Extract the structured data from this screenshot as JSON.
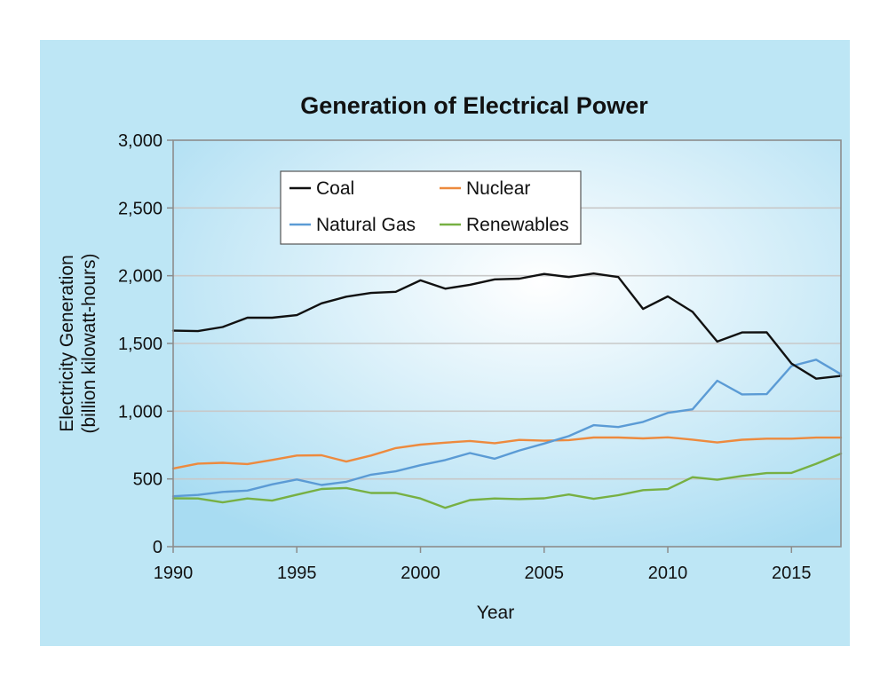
{
  "colors": {
    "panel": "#bde6f5",
    "plot_center": "#ffffff",
    "plot_edge": "#a8dcf2",
    "grid": "#c8c8c8",
    "frame": "#8c8c8c"
  },
  "chart_data": {
    "type": "line",
    "title": "Generation of Electrical Power",
    "xlabel": "Year",
    "ylabel_lines": [
      "Electricity Generation",
      "(billion kilowatt-hours)"
    ],
    "xlim": [
      1990,
      2017
    ],
    "ylim": [
      0,
      3000
    ],
    "xticks": [
      1990,
      1995,
      2000,
      2005,
      2010,
      2015
    ],
    "xtick_labels": [
      "1990",
      "1995",
      "2000",
      "2005",
      "2010",
      "2015"
    ],
    "yticks": [
      0,
      500,
      1000,
      1500,
      2000,
      2500,
      3000
    ],
    "ytick_labels": [
      "0",
      "500",
      "1,000",
      "1,500",
      "2,000",
      "2,500",
      "3,000"
    ],
    "grid": true,
    "legend_position": "top-left",
    "x": [
      1990,
      1991,
      1992,
      1993,
      1994,
      1995,
      1996,
      1997,
      1998,
      1999,
      2000,
      2001,
      2002,
      2003,
      2004,
      2005,
      2006,
      2007,
      2008,
      2009,
      2010,
      2011,
      2012,
      2013,
      2014,
      2015,
      2016,
      2017
    ],
    "series": [
      {
        "name": "Coal",
        "color": "#111111",
        "values": [
          1594,
          1591,
          1621,
          1690,
          1690,
          1709,
          1796,
          1845,
          1873,
          1881,
          1966,
          1904,
          1933,
          1973,
          1978,
          2013,
          1990,
          2016,
          1990,
          1755,
          1847,
          1733,
          1514,
          1581,
          1582,
          1352,
          1240,
          1260
        ]
      },
      {
        "name": "Nuclear",
        "color": "#ed8a3e",
        "values": [
          577,
          613,
          619,
          610,
          640,
          673,
          675,
          628,
          673,
          728,
          753,
          768,
          780,
          764,
          788,
          782,
          787,
          806,
          806,
          799,
          807,
          790,
          769,
          789,
          797,
          797,
          805,
          805
        ]
      },
      {
        "name": "Natural Gas",
        "color": "#5b9bd5",
        "values": [
          372,
          382,
          404,
          414,
          460,
          496,
          455,
          479,
          531,
          556,
          601,
          639,
          691,
          649,
          710,
          761,
          816,
          897,
          883,
          921,
          988,
          1014,
          1225,
          1124,
          1126,
          1333,
          1380,
          1273
        ]
      },
      {
        "name": "Renewables",
        "color": "#77b043",
        "values": [
          357,
          356,
          327,
          356,
          340,
          384,
          426,
          433,
          396,
          396,
          356,
          287,
          344,
          356,
          351,
          357,
          385,
          353,
          380,
          417,
          425,
          513,
          494,
          522,
          543,
          544,
          612,
          687
        ]
      }
    ]
  }
}
